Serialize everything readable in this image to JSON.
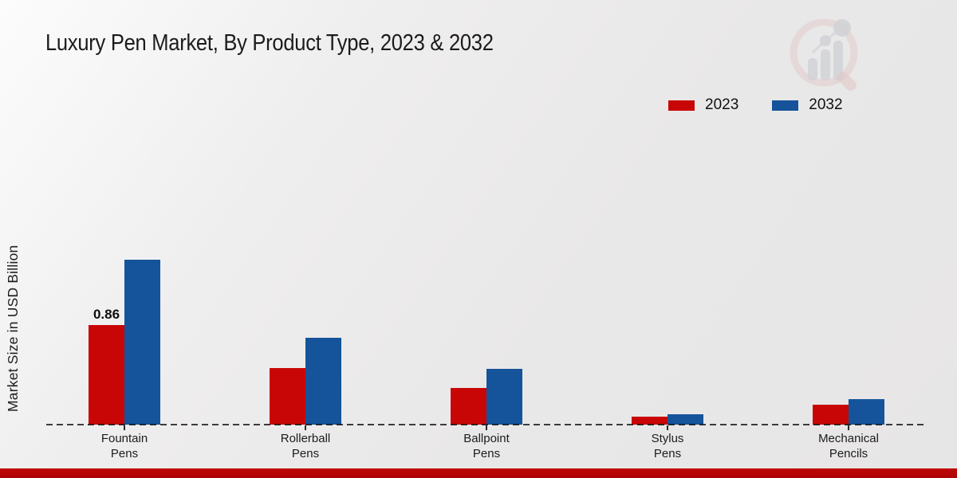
{
  "chart_data": {
    "type": "bar",
    "title": "Luxury Pen Market, By Product Type, 2023 & 2032",
    "xlabel": "",
    "ylabel": "Market Size in USD Billion",
    "categories": [
      "Fountain Pens",
      "Rollerball Pens",
      "Ballpoint Pens",
      "Stylus Pens",
      "Mechanical Pencils"
    ],
    "category_lines": [
      [
        "Fountain",
        "Pens"
      ],
      [
        "Rollerball",
        "Pens"
      ],
      [
        "Ballpoint",
        "Pens"
      ],
      [
        "Stylus",
        "Pens"
      ],
      [
        "Mechanical",
        "Pencils"
      ]
    ],
    "series": [
      {
        "name": "2023",
        "color": "#c90606",
        "values": [
          0.86,
          0.49,
          0.32,
          0.07,
          0.17
        ]
      },
      {
        "name": "2032",
        "color": "#15549a",
        "values": [
          1.43,
          0.75,
          0.48,
          0.09,
          0.22
        ]
      }
    ],
    "annotations": [
      {
        "series": "2023",
        "category_index": 0,
        "text": "0.86"
      }
    ],
    "ylim": [
      0,
      1.6
    ],
    "grid": false,
    "axis_style": "dashed-baseline-only",
    "legend_position": "top-right"
  },
  "icons": {
    "watermark_icon": "bar-chart-magnifier-logo"
  },
  "colors": {
    "series_2023": "#c90606",
    "series_2032": "#15549a",
    "footer_band": "#c00505",
    "baseline": "#141414",
    "background": "#e9e8e8"
  }
}
